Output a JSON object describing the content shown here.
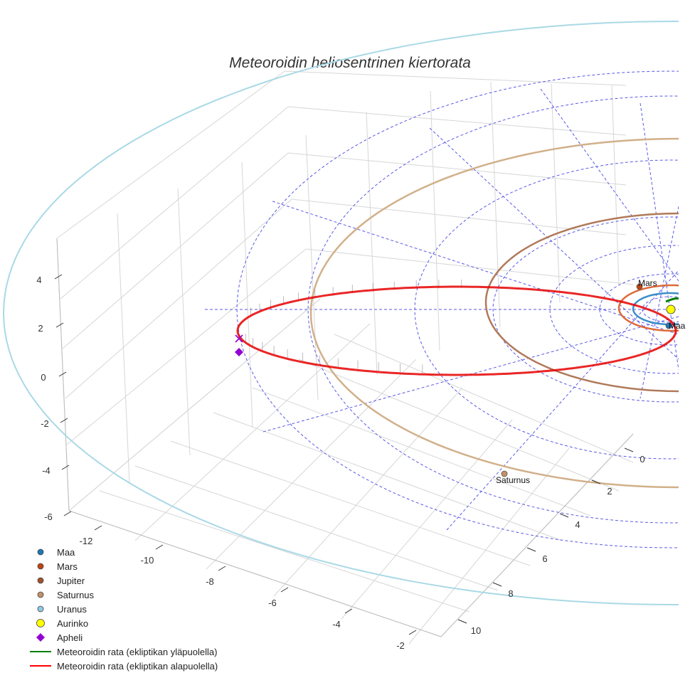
{
  "chart_data": {
    "type": "scatter",
    "title": "Meteoroidin heliosentrinen kiertorata",
    "x_ticks": [
      -12,
      -10,
      -8,
      -6,
      -4,
      -2
    ],
    "y_ticks": [
      0,
      2,
      4,
      6,
      8,
      10
    ],
    "z_ticks": [
      4,
      2,
      0,
      -2,
      -4,
      -6
    ],
    "point_labels": {
      "mars": "Mars",
      "maa": "Maa",
      "saturnus": "Saturnus"
    },
    "legend": [
      {
        "name": "Maa",
        "symbol": "dot",
        "color": "#1f77b4"
      },
      {
        "name": "Mars",
        "symbol": "dot",
        "color": "#c1440e"
      },
      {
        "name": "Jupiter",
        "symbol": "dot",
        "color": "#a0522d"
      },
      {
        "name": "Saturnus",
        "symbol": "dot",
        "color": "#c4906a"
      },
      {
        "name": "Uranus",
        "symbol": "dot",
        "color": "#8ecae6"
      },
      {
        "name": "Aurinko",
        "symbol": "bigdot",
        "color": "#ffff00"
      },
      {
        "name": "Apheli",
        "symbol": "diamond",
        "color": "#9400d3"
      },
      {
        "name": "Meteoroidin rata (ekliptikan yläpuolella)",
        "symbol": "line",
        "color": "#008000"
      },
      {
        "name": "Meteoroidin rata (ekliptikan alapuolella)",
        "symbol": "line",
        "color": "#ff0000"
      }
    ]
  }
}
